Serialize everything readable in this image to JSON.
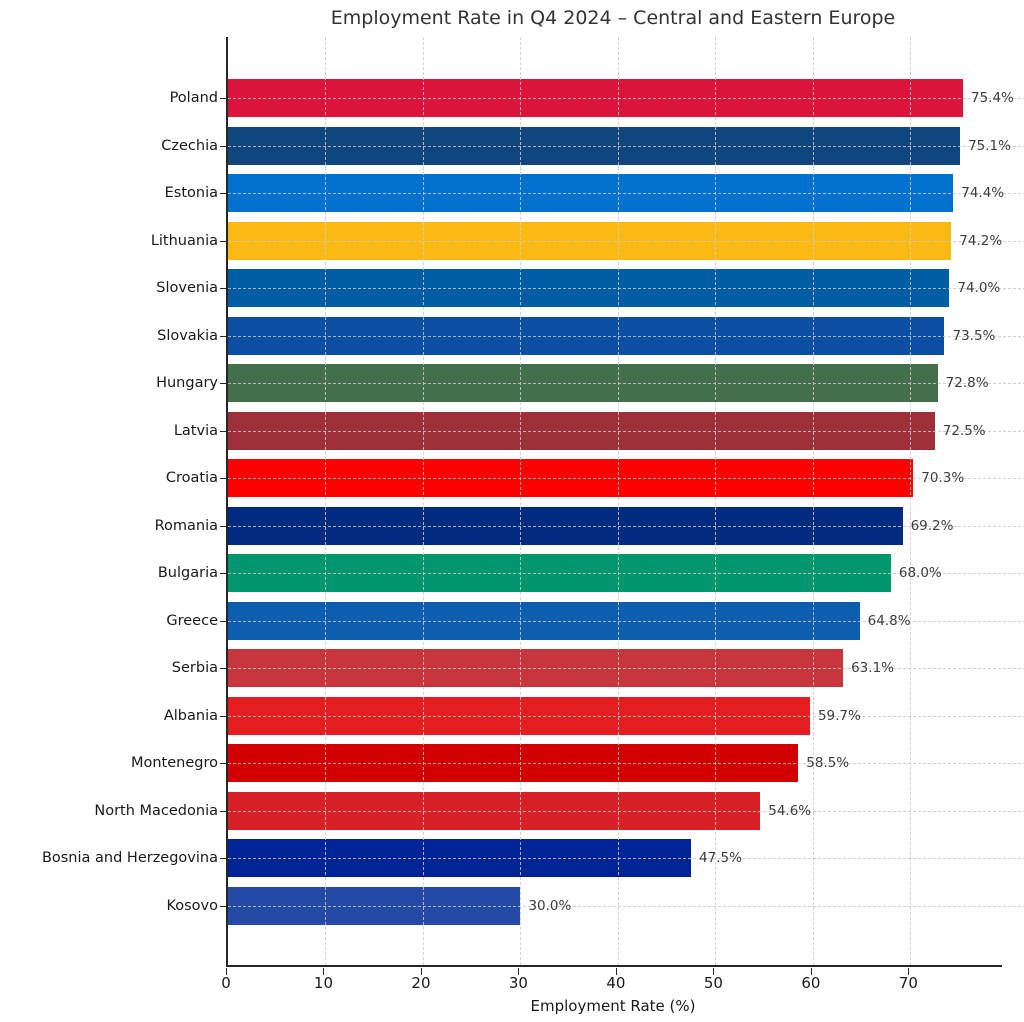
{
  "chart_data": {
    "type": "bar",
    "orientation": "horizontal",
    "title": "Employment Rate in Q4 2024 – Central and Eastern Europe",
    "xlabel": "Employment Rate (%)",
    "xlim": [
      0,
      79.4
    ],
    "xticks": [
      0,
      10,
      20,
      30,
      40,
      50,
      60,
      70
    ],
    "grid": "dashed, vertical and horizontal",
    "legend": "none",
    "categories": [
      "Poland",
      "Czechia",
      "Estonia",
      "Lithuania",
      "Slovenia",
      "Slovakia",
      "Hungary",
      "Latvia",
      "Croatia",
      "Romania",
      "Bulgaria",
      "Greece",
      "Serbia",
      "Albania",
      "Montenegro",
      "North Macedonia",
      "Bosnia and Herzegovina",
      "Kosovo"
    ],
    "values": [
      75.4,
      75.1,
      74.4,
      74.2,
      74.0,
      73.5,
      72.8,
      72.5,
      70.3,
      69.2,
      68.0,
      64.8,
      63.1,
      59.7,
      58.5,
      54.6,
      47.5,
      30.0
    ],
    "value_labels": [
      "75.4%",
      "75.1%",
      "74.4%",
      "74.2%",
      "74.0%",
      "73.5%",
      "72.8%",
      "72.5%",
      "70.3%",
      "69.2%",
      "68.0%",
      "64.8%",
      "63.1%",
      "59.7%",
      "58.5%",
      "54.6%",
      "47.5%",
      "30.0%"
    ],
    "bar_colors": [
      "#DC143C",
      "#11457E",
      "#0072CE",
      "#FDB913",
      "#005DA4",
      "#0B4EA2",
      "#436F4D",
      "#9E3039",
      "#FF0000",
      "#002B7F",
      "#00966E",
      "#0D5EAF",
      "#C6363C",
      "#E41E20",
      "#D20000",
      "#D82126",
      "#002395",
      "#244AA5"
    ],
    "grid_color": "#cdcdcd",
    "spine_color": "#262626",
    "title_color": "#333333",
    "value_label_color": "#3d3d3d"
  }
}
